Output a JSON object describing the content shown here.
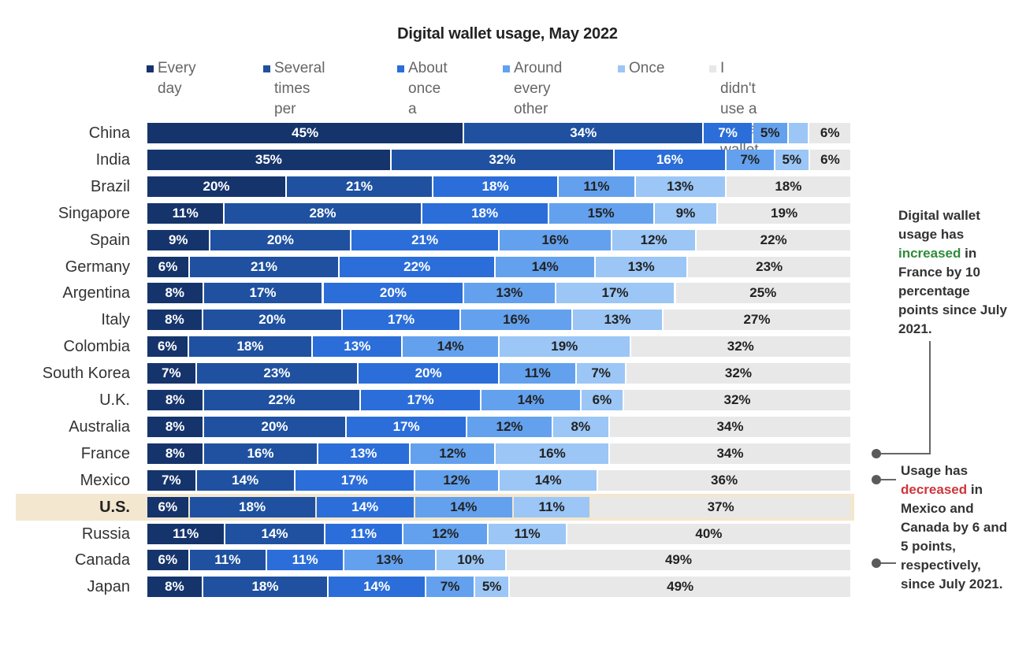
{
  "chart_data": {
    "type": "bar",
    "orientation": "horizontal",
    "stacked": true,
    "normalized": true,
    "title": "Digital wallet usage, May 2022",
    "xlabel": "",
    "ylabel": "",
    "xlim": [
      0,
      100
    ],
    "grid": false,
    "legend_position": "top",
    "value_suffix": "%",
    "highlighted_category": "U.S.",
    "series": [
      {
        "name": "Every day",
        "legend_label": "Every day",
        "color": "#16346c",
        "text_color": "#ffffff",
        "values": [
          45,
          35,
          20,
          11,
          9,
          6,
          8,
          8,
          6,
          7,
          8,
          8,
          8,
          7,
          6,
          11,
          6,
          8
        ]
      },
      {
        "name": "Several times per week",
        "legend_label": "Several times\nper week",
        "color": "#1f51a0",
        "text_color": "#ffffff",
        "values": [
          34,
          32,
          21,
          28,
          20,
          21,
          17,
          20,
          18,
          23,
          22,
          20,
          16,
          14,
          18,
          14,
          11,
          18
        ]
      },
      {
        "name": "About once a week",
        "legend_label": "About once\na week",
        "color": "#2b6ed9",
        "text_color": "#ffffff",
        "values": [
          7,
          16,
          18,
          18,
          21,
          22,
          20,
          17,
          13,
          20,
          17,
          17,
          13,
          17,
          14,
          11,
          11,
          14
        ]
      },
      {
        "name": "Around every other week",
        "legend_label": "Around every\nother week",
        "color": "#63a1ee",
        "text_color": "#222222",
        "values": [
          5,
          7,
          11,
          15,
          16,
          14,
          13,
          16,
          14,
          11,
          14,
          12,
          12,
          12,
          14,
          12,
          13,
          7
        ]
      },
      {
        "name": "Once",
        "legend_label": "Once",
        "color": "#9bc6f6",
        "text_color": "#222222",
        "values": [
          3,
          5,
          13,
          9,
          12,
          13,
          17,
          13,
          19,
          7,
          6,
          8,
          16,
          14,
          11,
          11,
          10,
          5
        ],
        "hidden_labels": [
          0
        ]
      },
      {
        "name": "I didn't use a digital wallet",
        "legend_label": "I didn't use a\ndigital wallet",
        "color": "#e8e8e8",
        "text_color": "#222222",
        "values": [
          6,
          6,
          18,
          19,
          22,
          23,
          25,
          27,
          32,
          32,
          32,
          34,
          34,
          36,
          37,
          40,
          49,
          49
        ]
      }
    ],
    "categories": [
      "China",
      "India",
      "Brazil",
      "Singapore",
      "Spain",
      "Germany",
      "Argentina",
      "Italy",
      "Colombia",
      "South Korea",
      "U.K.",
      "Australia",
      "France",
      "Mexico",
      "U.S.",
      "Russia",
      "Canada",
      "Japan"
    ],
    "annotations": [
      {
        "target": "France",
        "before": "Digital wallet usage has ",
        "emphasis": "increased",
        "emphasis_type": "up",
        "after": " in France by 10 percentage points since July 2021."
      },
      {
        "target": [
          "Mexico",
          "Canada"
        ],
        "before": "Usage has ",
        "emphasis": "decreased",
        "emphasis_type": "down",
        "after": " in Mexico and Canada by 6 and 5 points, respectively, since July 2021."
      }
    ],
    "annotation_colors": {
      "up": "#2e8b3a",
      "down": "#d0343b"
    },
    "highlight_color": "#f3e7cf"
  }
}
